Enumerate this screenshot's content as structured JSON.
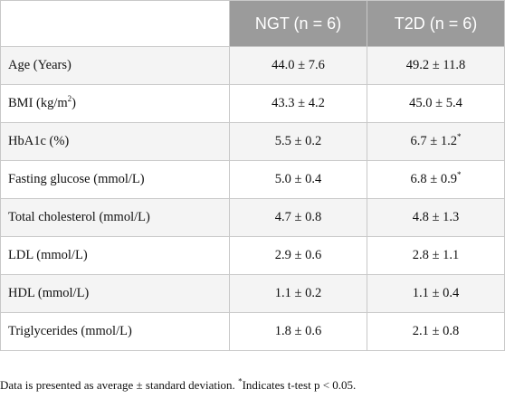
{
  "table": {
    "header": {
      "col1": "",
      "col2": "NGT (n = 6)",
      "col3": "T2D (n = 6)"
    },
    "rows": [
      {
        "label": "Age (Years)",
        "ngt": "44.0 ± 7.6",
        "t2d": "49.2 ± 11.8",
        "t2d_sup": ""
      },
      {
        "label": "BMI (kg/m",
        "label_sup": "2",
        "label_after": ")",
        "ngt": "43.3 ± 4.2",
        "t2d": "45.0 ± 5.4",
        "t2d_sup": ""
      },
      {
        "label": "HbA1c (%)",
        "ngt": "5.5 ± 0.2",
        "t2d": "6.7 ± 1.2",
        "t2d_sup": "*"
      },
      {
        "label": "Fasting glucose (mmol/L)",
        "ngt": "5.0 ± 0.4",
        "t2d": "6.8 ± 0.9",
        "t2d_sup": "*"
      },
      {
        "label": "Total cholesterol (mmol/L)",
        "ngt": "4.7 ± 0.8",
        "t2d": "4.8 ± 1.3",
        "t2d_sup": ""
      },
      {
        "label": "LDL (mmol/L)",
        "ngt": "2.9 ± 0.6",
        "t2d": "2.8 ± 1.1",
        "t2d_sup": ""
      },
      {
        "label": "HDL (mmol/L)",
        "ngt": "1.1 ± 0.2",
        "t2d": "1.1 ± 0.4",
        "t2d_sup": ""
      },
      {
        "label": "Triglycerides (mmol/L)",
        "ngt": "1.8 ± 0.6",
        "t2d": "2.1 ± 0.8",
        "t2d_sup": ""
      }
    ]
  },
  "footnote": {
    "text": "Data is presented as average ± standard deviation. ",
    "sup": "*",
    "text2": "Indicates t-test p < 0.05."
  },
  "colors": {
    "header_bg": "#9b9b9b",
    "header_text": "#ffffff",
    "stripe": "#f4f4f4",
    "border": "#c8c8c8"
  }
}
